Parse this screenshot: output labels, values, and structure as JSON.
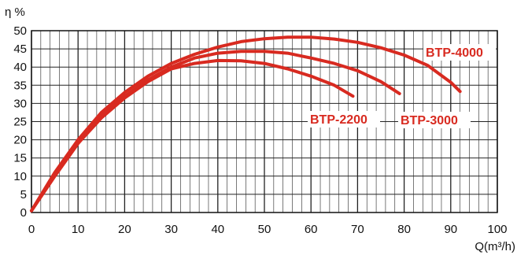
{
  "chart_data": {
    "type": "line",
    "ylabel": "η %",
    "xlabel": "Q(m³/h)",
    "xlim": [
      0,
      100
    ],
    "ylim": [
      0,
      50
    ],
    "x_ticks": [
      0,
      10,
      20,
      30,
      40,
      50,
      60,
      70,
      80,
      90,
      100
    ],
    "y_ticks": [
      0,
      5,
      10,
      15,
      20,
      25,
      30,
      35,
      40,
      45,
      50
    ],
    "grid": true,
    "line_color": "#d82a20",
    "series": [
      {
        "name": "BTP-2200",
        "x": [
          0,
          5,
          10,
          15,
          20,
          25,
          30,
          35,
          40,
          45,
          50,
          55,
          60,
          65,
          69
        ],
        "y": [
          0.5,
          10,
          19,
          26,
          31.5,
          36,
          39.5,
          41,
          41.8,
          41.7,
          41,
          39.5,
          37.5,
          35,
          32
        ]
      },
      {
        "name": "BTP-3000",
        "x": [
          0,
          5,
          10,
          15,
          20,
          25,
          30,
          35,
          40,
          45,
          50,
          55,
          60,
          65,
          70,
          75,
          79
        ],
        "y": [
          0.5,
          10,
          19,
          26.5,
          32,
          36.5,
          40,
          42.5,
          43.8,
          44.3,
          44.3,
          43.8,
          42.5,
          41,
          39,
          36,
          32.7
        ]
      },
      {
        "name": "BTP-4000",
        "x": [
          0,
          5,
          10,
          15,
          20,
          25,
          30,
          35,
          40,
          45,
          50,
          55,
          60,
          65,
          70,
          75,
          80,
          85,
          90,
          92
        ],
        "y": [
          0.5,
          11,
          20,
          27.5,
          33,
          37.5,
          41,
          43.5,
          45.5,
          47,
          47.8,
          48.2,
          48.2,
          47.7,
          46.8,
          45.3,
          43.3,
          40.5,
          35.8,
          33.3
        ]
      }
    ]
  }
}
